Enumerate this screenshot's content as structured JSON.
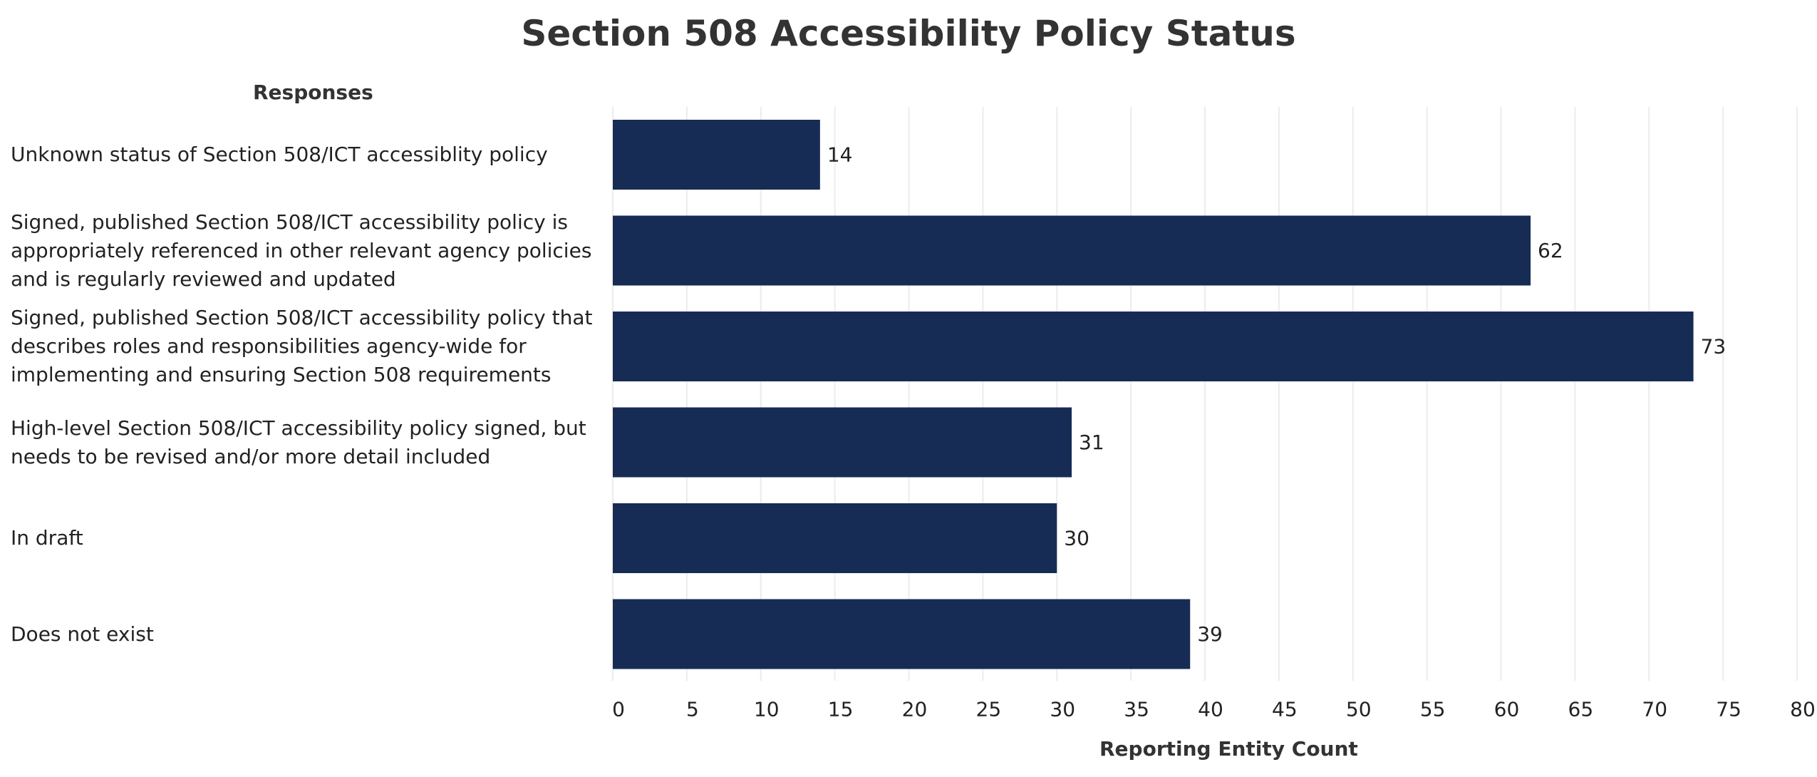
{
  "chart_data": {
    "type": "bar",
    "orientation": "horizontal",
    "title": "Section 508 Accessibility Policy Status",
    "row_header": "Responses",
    "xlabel": "Reporting Entity Count",
    "ylabel": "",
    "xlim": [
      0,
      80
    ],
    "x_ticks": [
      0,
      5,
      10,
      15,
      20,
      25,
      30,
      35,
      40,
      45,
      50,
      55,
      60,
      65,
      70,
      75,
      80
    ],
    "grid": "vertical",
    "bar_color": "#172c55",
    "categories": [
      "Unknown status of Section 508/ICT accessiblity policy",
      "Signed, published Section 508/ICT accessibility policy is\nappropriately referenced in other relevant agency policies\nand is regularly reviewed and updated",
      "Signed, published Section 508/ICT accessibility policy that\ndescribes roles and responsibilities agency-wide for\nimplementing and ensuring Section 508 requirements",
      "High-level Section 508/ICT accessibility policy signed, but\nneeds to be revised and/or more detail included",
      "In draft",
      "Does not exist"
    ],
    "values": [
      14,
      62,
      73,
      31,
      30,
      39
    ]
  }
}
